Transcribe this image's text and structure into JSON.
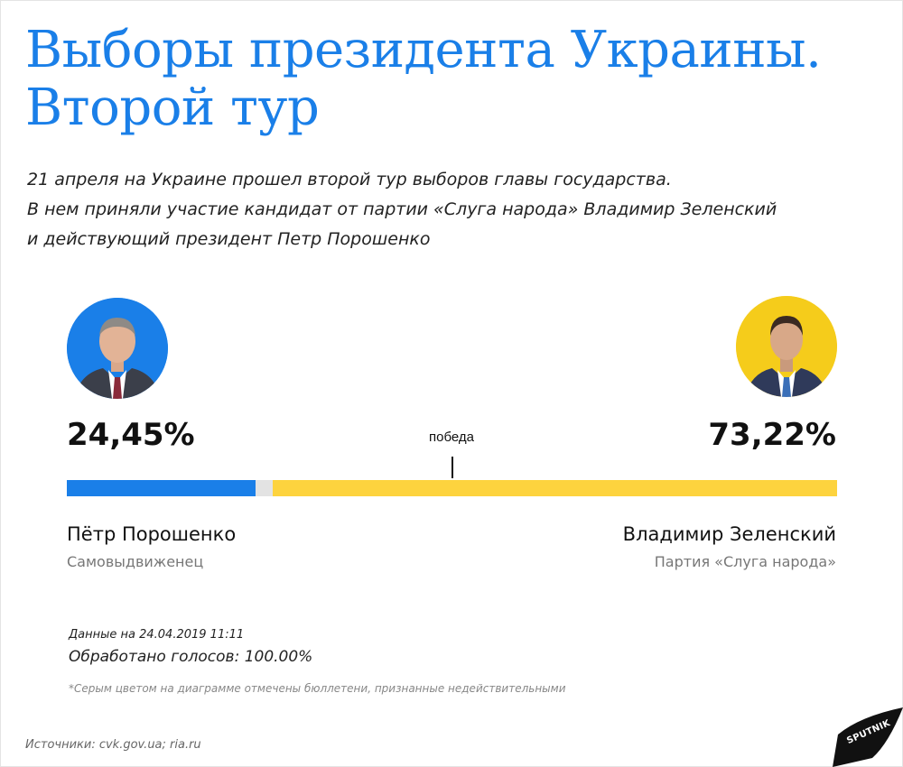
{
  "header": {
    "title_line1": "Выборы президента Украины.",
    "title_line2": "Второй тур",
    "subtitle_line1": "21 апреля на Украине прошел второй тур выборов главы государства.",
    "subtitle_line2": "В нем приняли участие кандидат от партии «Слуга народа» Владимир Зеленский",
    "subtitle_line3": "и действующий президент Петр Порошенко"
  },
  "chart_data": {
    "type": "bar",
    "orientation": "horizontal-stacked",
    "series": [
      {
        "name": "Пётр Порошенко",
        "value": 24.45,
        "color": "#1a7fe8"
      },
      {
        "name": "invalid",
        "value": 2.33,
        "color": "#e3e3e3"
      },
      {
        "name": "Владимир Зеленский",
        "value": 73.22,
        "color": "#fdd33e"
      }
    ],
    "total": 100,
    "threshold": {
      "label": "победа",
      "value": 50
    }
  },
  "candidates": {
    "left": {
      "pct": "24,45%",
      "name": "Пётр Порошенко",
      "party": "Самовыдвиженец",
      "photo_icon": "candidate-photo-icon",
      "bg_color": "#1a7fe8"
    },
    "right": {
      "pct": "73,22%",
      "name": "Владимир Зеленский",
      "party": "Партия «Слуга народа»",
      "photo_icon": "candidate-photo-icon",
      "bg_color": "#f5cc1b"
    }
  },
  "notes": {
    "date": "Данные на 24.04.2019 11:11",
    "processed": "Обработано голосов: 100.00%",
    "footnote": "*Серым цветом на диаграмме отмечены бюллетени, признанные недействительными",
    "sources": "Источники: cvk.gov.ua; ria.ru"
  },
  "brand": {
    "logo_text": "SPUTNIK"
  },
  "colors": {
    "accent": "#1a7fe8",
    "yellow": "#fdd33e",
    "invalid": "#e3e3e3"
  }
}
